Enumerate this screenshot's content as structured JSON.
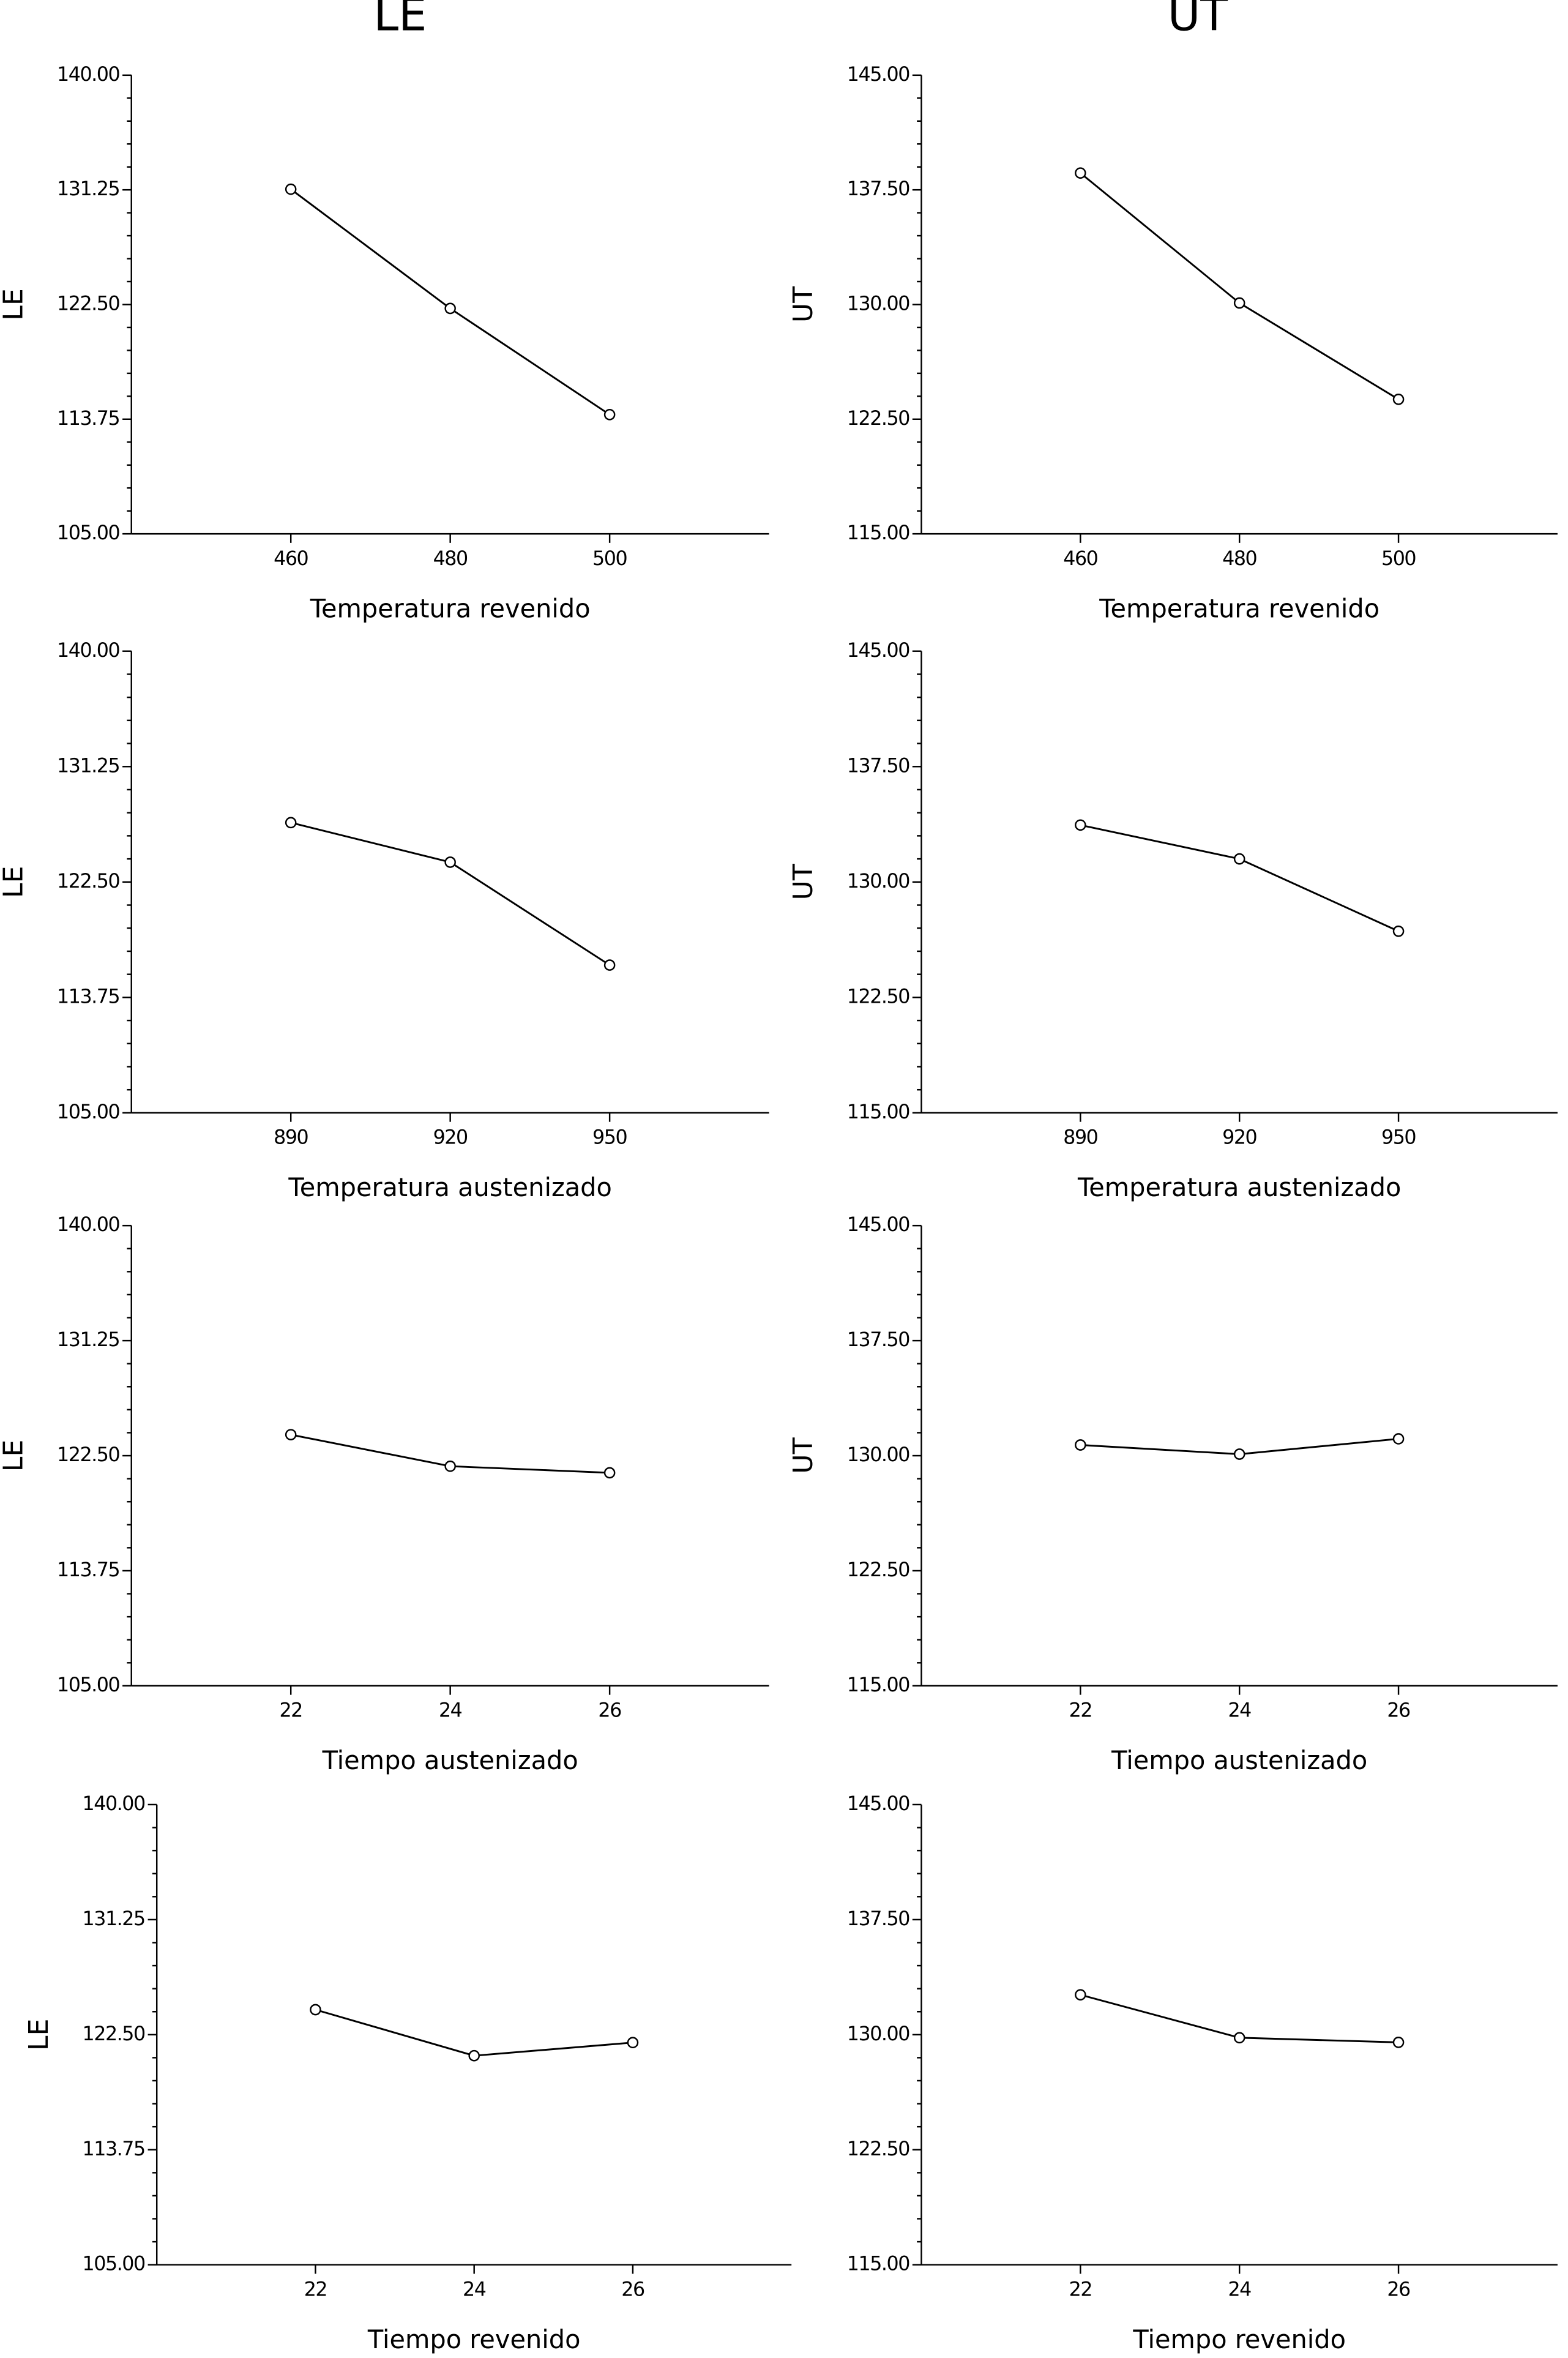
{
  "column_titles": [
    "LE",
    "UT"
  ],
  "chart_data": [
    {
      "type": "line",
      "ylabel": "LE",
      "xlabel": "Temperatura revenido",
      "x": [
        460,
        480,
        500
      ],
      "values": [
        131.3,
        122.2,
        114.1
      ],
      "color": "#000000",
      "xlim": [
        440,
        520
      ],
      "xticks": [
        460,
        480,
        500
      ],
      "ylim": [
        105,
        140
      ],
      "yticks": [
        {
          "value": 105,
          "label": "105.00"
        },
        {
          "value": 113.75,
          "label": "113.75"
        },
        {
          "value": 122.5,
          "label": "122.50"
        },
        {
          "value": 131.25,
          "label": "131.25"
        },
        {
          "value": 140,
          "label": "140.00"
        }
      ]
    },
    {
      "type": "line",
      "ylabel": "UT",
      "xlabel": "Temperatura revenido",
      "x": [
        460,
        480,
        500
      ],
      "values": [
        138.6,
        130.1,
        123.8
      ],
      "color": "#000000",
      "xlim": [
        440,
        520
      ],
      "xticks": [
        460,
        480,
        500
      ],
      "ylim": [
        115,
        145
      ],
      "yticks": [
        {
          "value": 115,
          "label": "115.00"
        },
        {
          "value": 122.5,
          "label": "122.50"
        },
        {
          "value": 130,
          "label": "130.00"
        },
        {
          "value": 137.5,
          "label": "137.50"
        },
        {
          "value": 145,
          "label": "145.00"
        }
      ]
    },
    {
      "type": "line",
      "ylabel": "LE",
      "xlabel": "Temperatura austenizado",
      "x": [
        890,
        920,
        950
      ],
      "values": [
        127.0,
        124.0,
        116.2
      ],
      "color": "#000000",
      "xlim": [
        860,
        980
      ],
      "xticks": [
        890,
        920,
        950
      ],
      "ylim": [
        105,
        140
      ],
      "yticks": [
        {
          "value": 105,
          "label": "105.00"
        },
        {
          "value": 113.75,
          "label": "113.75"
        },
        {
          "value": 122.5,
          "label": "122.50"
        },
        {
          "value": 131.25,
          "label": "131.25"
        },
        {
          "value": 140,
          "label": "140.00"
        }
      ]
    },
    {
      "type": "line",
      "ylabel": "UT",
      "xlabel": "Temperatura austenizado",
      "x": [
        890,
        920,
        950
      ],
      "values": [
        133.7,
        131.5,
        126.8
      ],
      "color": "#000000",
      "xlim": [
        860,
        980
      ],
      "xticks": [
        890,
        920,
        950
      ],
      "ylim": [
        115,
        145
      ],
      "yticks": [
        {
          "value": 115,
          "label": "115.00"
        },
        {
          "value": 122.5,
          "label": "122.50"
        },
        {
          "value": 130,
          "label": "130.00"
        },
        {
          "value": 137.5,
          "label": "137.50"
        },
        {
          "value": 145,
          "label": "145.00"
        }
      ]
    },
    {
      "type": "line",
      "ylabel": "LE",
      "xlabel": "Tiempo austenizado",
      "x": [
        22,
        24,
        26
      ],
      "values": [
        124.1,
        121.7,
        121.2
      ],
      "color": "#000000",
      "xlim": [
        20,
        28
      ],
      "xticks": [
        22,
        24,
        26
      ],
      "ylim": [
        105,
        140
      ],
      "yticks": [
        {
          "value": 105,
          "label": "105.00"
        },
        {
          "value": 113.75,
          "label": "113.75"
        },
        {
          "value": 122.5,
          "label": "122.50"
        },
        {
          "value": 131.25,
          "label": "131.25"
        },
        {
          "value": 140,
          "label": "140.00"
        }
      ]
    },
    {
      "type": "line",
      "ylabel": "UT",
      "xlabel": "Tiempo austenizado",
      "x": [
        22,
        24,
        26
      ],
      "values": [
        130.7,
        130.1,
        131.1
      ],
      "color": "#000000",
      "xlim": [
        20,
        28
      ],
      "xticks": [
        22,
        24,
        26
      ],
      "ylim": [
        115,
        145
      ],
      "yticks": [
        {
          "value": 115,
          "label": "115.00"
        },
        {
          "value": 122.5,
          "label": "122.50"
        },
        {
          "value": 130,
          "label": "130.00"
        },
        {
          "value": 137.5,
          "label": "137.50"
        },
        {
          "value": 145,
          "label": "145.00"
        }
      ]
    },
    {
      "type": "line",
      "ylabel": "LE",
      "xlabel": "Tiempo revenido",
      "x": [
        22,
        24,
        26
      ],
      "values": [
        124.4,
        120.9,
        121.9
      ],
      "color": "#000000",
      "xlim": [
        20,
        28
      ],
      "xticks": [
        22,
        24,
        26
      ],
      "ylim": [
        105,
        140
      ],
      "yticks": [
        {
          "value": 105,
          "label": "105.00"
        },
        {
          "value": 113.75,
          "label": "113.75"
        },
        {
          "value": 122.5,
          "label": "122.50"
        },
        {
          "value": 131.25,
          "label": "131.25"
        },
        {
          "value": 140,
          "label": "140.00"
        }
      ]
    },
    {
      "type": "line",
      "xlabel": "Tiempo revenido",
      "x": [
        22,
        24,
        26
      ],
      "values": [
        132.6,
        129.8,
        129.5
      ],
      "color": "#000000",
      "xlim": [
        20,
        28
      ],
      "xticks": [
        22,
        24,
        26
      ],
      "ylim": [
        115,
        145
      ],
      "yticks": [
        {
          "value": 115,
          "label": "115.00"
        },
        {
          "value": 122.5,
          "label": "122.50"
        },
        {
          "value": 130,
          "label": "130.00"
        },
        {
          "value": 137.5,
          "label": "137.50"
        },
        {
          "value": 145,
          "label": "145.00"
        }
      ]
    }
  ]
}
